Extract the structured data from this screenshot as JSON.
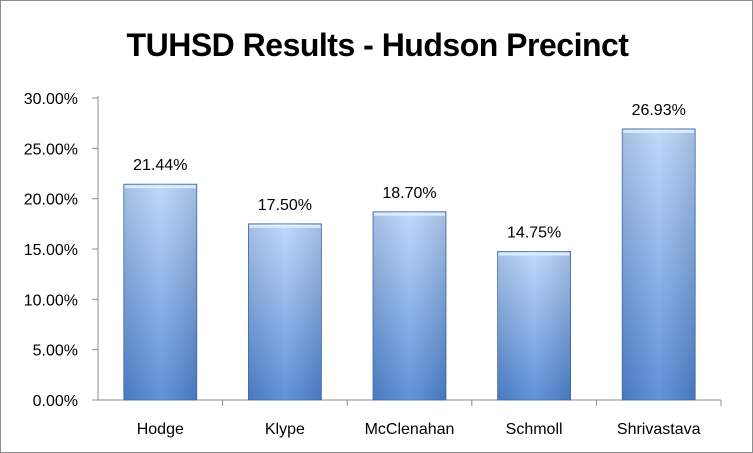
{
  "chart_data": {
    "type": "bar",
    "title": "TUHSD Results - Hudson Precinct",
    "categories": [
      "Hodge",
      "Klype",
      "McClenahan",
      "Schmoll",
      "Shrivastava"
    ],
    "values": [
      21.44,
      17.5,
      18.7,
      14.75,
      26.93
    ],
    "data_labels": [
      "21.44%",
      "17.50%",
      "18.70%",
      "14.75%",
      "26.93%"
    ],
    "y_ticks": [
      0,
      5,
      10,
      15,
      20,
      25,
      30
    ],
    "y_tick_labels": [
      "0.00%",
      "5.00%",
      "10.00%",
      "15.00%",
      "20.00%",
      "25.00%",
      "30.00%"
    ],
    "ylim": [
      0,
      30
    ],
    "xlabel": "",
    "ylabel": "",
    "grid": false,
    "legend": "none",
    "bar_color_top": "#b9d5fb",
    "bar_color_bottom": "#4f86d4",
    "bar_edge_color": "#3f6fb3"
  }
}
